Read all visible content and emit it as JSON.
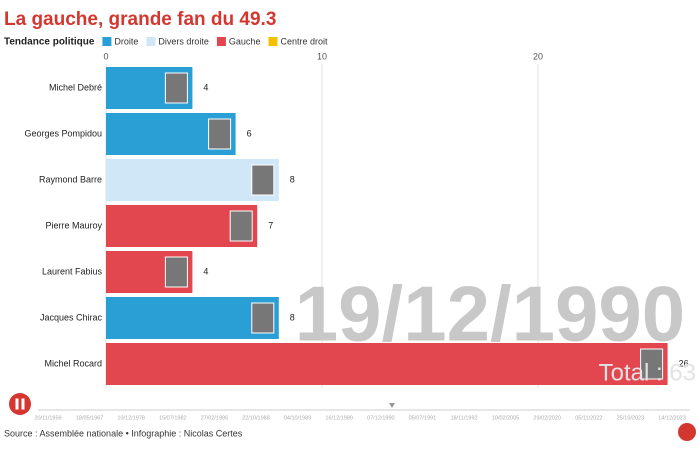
{
  "chart_data": {
    "type": "bar",
    "orientation": "horizontal",
    "title": "La gauche, grande fan du 49.3",
    "legend_title": "Tendance politique",
    "legend": [
      {
        "name": "Droite",
        "color": "#2a9fd6"
      },
      {
        "name": "Divers droite",
        "color": "#cfe7f6"
      },
      {
        "name": "Gauche",
        "color": "#e2474f"
      },
      {
        "name": "Centre droit",
        "color": "#f2c200"
      }
    ],
    "categories": [
      "Michel Debré",
      "Georges Pompidou",
      "Raymond Barre",
      "Pierre Mauroy",
      "Laurent Fabius",
      "Jacques Chirac",
      "Michel Rocard"
    ],
    "values": [
      4,
      6,
      8,
      7,
      4,
      8,
      26
    ],
    "bar_colors": [
      "#2a9fd6",
      "#2a9fd6",
      "#cfe7f6",
      "#e2474f",
      "#e2474f",
      "#2a9fd6",
      "#e2474f"
    ],
    "xlim": [
      0,
      26
    ],
    "xticks": [
      0,
      10,
      20
    ],
    "grid": true,
    "date": "19/12/1990",
    "total": "Total : 63",
    "timeline_labels": [
      "20/11/1959",
      "18/05/1967",
      "10/12/1978",
      "15/07/1982",
      "27/02/1986",
      "22/10/1988",
      "04/10/1989",
      "16/12/1989",
      "07/12/1990",
      "05/07/1991",
      "18/11/1992",
      "10/02/2005",
      "29/02/2020",
      "05/11/2022",
      "25/10/2023",
      "14/12/2023"
    ],
    "source": "Source : Assemblée nationale • Infographie : Nicolas Certes"
  }
}
